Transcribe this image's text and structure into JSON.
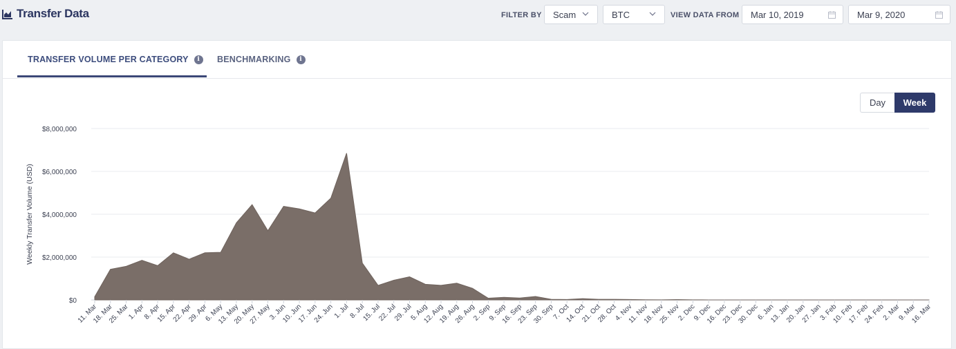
{
  "header": {
    "title": "Transfer Data",
    "filter_label": "FILTER BY",
    "category_select": "Scam",
    "currency_select": "BTC",
    "view_label": "VIEW DATA FROM",
    "date_from": "Mar 10, 2019",
    "date_to": "Mar 9, 2020"
  },
  "tabs": [
    {
      "label": "TRANSFER VOLUME PER CATEGORY",
      "active": true
    },
    {
      "label": "BENCHMARKING",
      "active": false
    }
  ],
  "toggle": {
    "day": "Day",
    "week": "Week",
    "selected": "Week"
  },
  "colors": {
    "area": "#7a6e68",
    "accent": "#2e3a6a"
  },
  "chart_data": {
    "type": "area",
    "ylabel": "Weekly Transfer Volume (USD)",
    "yticks": [
      "$0",
      "$2,000,000",
      "$4,000,000",
      "$6,000,000",
      "$8,000,000"
    ],
    "ylim": [
      0,
      8000000
    ],
    "grid": true,
    "categories": [
      "11. Mar",
      "18. Mar",
      "25. Mar",
      "1. Apr",
      "8. Apr",
      "15. Apr",
      "22. Apr",
      "29. Apr",
      "6. May",
      "13. May",
      "20. May",
      "27. May",
      "3. Jun",
      "10. Jun",
      "17. Jun",
      "24. Jun",
      "1. Jul",
      "8. Jul",
      "15. Jul",
      "22. Jul",
      "29. Jul",
      "5. Aug",
      "12. Aug",
      "19. Aug",
      "26. Aug",
      "2. Sep",
      "9. Sep",
      "16. Sep",
      "23. Sep",
      "30. Sep",
      "7. Oct",
      "14. Oct",
      "21. Oct",
      "28. Oct",
      "4. Nov",
      "11. Nov",
      "18. Nov",
      "25. Nov",
      "2. Dec",
      "9. Dec",
      "16. Dec",
      "23. Dec",
      "30. Dec",
      "6. Jan",
      "13. Jan",
      "20. Jan",
      "27. Jan",
      "3. Feb",
      "10. Feb",
      "17. Feb",
      "24. Feb",
      "2. Mar",
      "9. Mar",
      "16. Mar"
    ],
    "series": [
      {
        "values": [
          150000,
          1430000,
          1570000,
          1850000,
          1600000,
          2200000,
          1900000,
          2200000,
          2220000,
          3600000,
          4450000,
          3230000,
          4370000,
          4250000,
          4060000,
          4750000,
          6850000,
          1720000,
          680000,
          920000,
          1080000,
          730000,
          680000,
          780000,
          540000,
          80000,
          120000,
          90000,
          160000,
          30000,
          20000,
          60000,
          30000,
          30000,
          20000,
          10000,
          5000,
          15000,
          5000,
          2000,
          2000,
          1000,
          1000,
          1000,
          1000,
          1000,
          1000,
          1000,
          1000,
          1000,
          1000,
          1000,
          1000,
          1000
        ]
      }
    ]
  }
}
